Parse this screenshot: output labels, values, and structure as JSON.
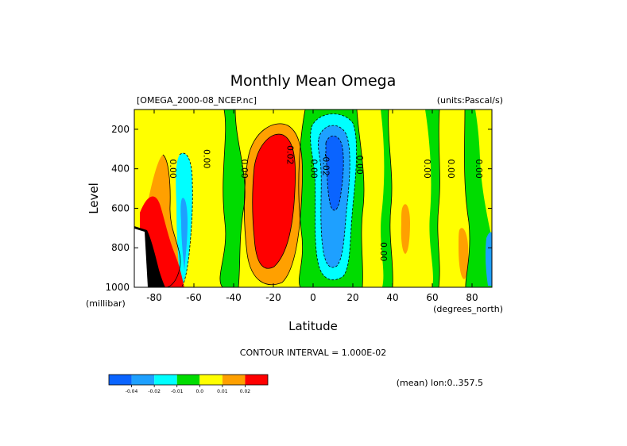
{
  "chart_data": {
    "type": "heatmap",
    "title": "Monthly Mean Omega",
    "subtitle_left": "[OMEGA_2000-08_NCEP.nc]",
    "subtitle_right": "(units:Pascal/s)",
    "xlabel": "Latitude",
    "xunits": "(degrees_north)",
    "ylabel": "Level",
    "yunits": "(millibar)",
    "xlim": [
      -90,
      90
    ],
    "ylim": [
      1000,
      100
    ],
    "x_ticks": [
      "-80",
      "-60",
      "-40",
      "-20",
      "0",
      "20",
      "40",
      "60",
      "80"
    ],
    "x_tick_values": [
      -80,
      -60,
      -40,
      -20,
      0,
      20,
      40,
      60,
      80
    ],
    "y_ticks": [
      "200",
      "400",
      "600",
      "800",
      "1000"
    ],
    "y_tick_values": [
      200,
      400,
      600,
      800,
      1000
    ],
    "contour_interval_text": "CONTOUR INTERVAL = 1.000E-02",
    "footer_text": "(mean) lon:0..357.5",
    "contour_labels": [
      {
        "text": "0.00",
        "x": -72,
        "y": 400
      },
      {
        "text": "0.00",
        "x": -55,
        "y": 350
      },
      {
        "text": "0.00",
        "x": -36,
        "y": 400
      },
      {
        "text": "0.02",
        "x": -13,
        "y": 330
      },
      {
        "text": "0.00",
        "x": -1,
        "y": 400
      },
      {
        "text": "-0.02",
        "x": 5,
        "y": 380
      },
      {
        "text": "0.00",
        "x": 22,
        "y": 380
      },
      {
        "text": "0.00",
        "x": 34,
        "y": 820
      },
      {
        "text": "0.00",
        "x": 56,
        "y": 400
      },
      {
        "text": "0.00",
        "x": 68,
        "y": 400
      },
      {
        "text": "0.00",
        "x": 82,
        "y": 400
      }
    ],
    "colorbar": {
      "labels": [
        "-0.04",
        "-0.02",
        "-0.01",
        "0.0",
        "0.01",
        "0.02"
      ],
      "colors": [
        "#0a64ff",
        "#1ea0ff",
        "#00ffff",
        "#00dc00",
        "#ffff00",
        "#ffa000",
        "#ff0000"
      ]
    }
  }
}
